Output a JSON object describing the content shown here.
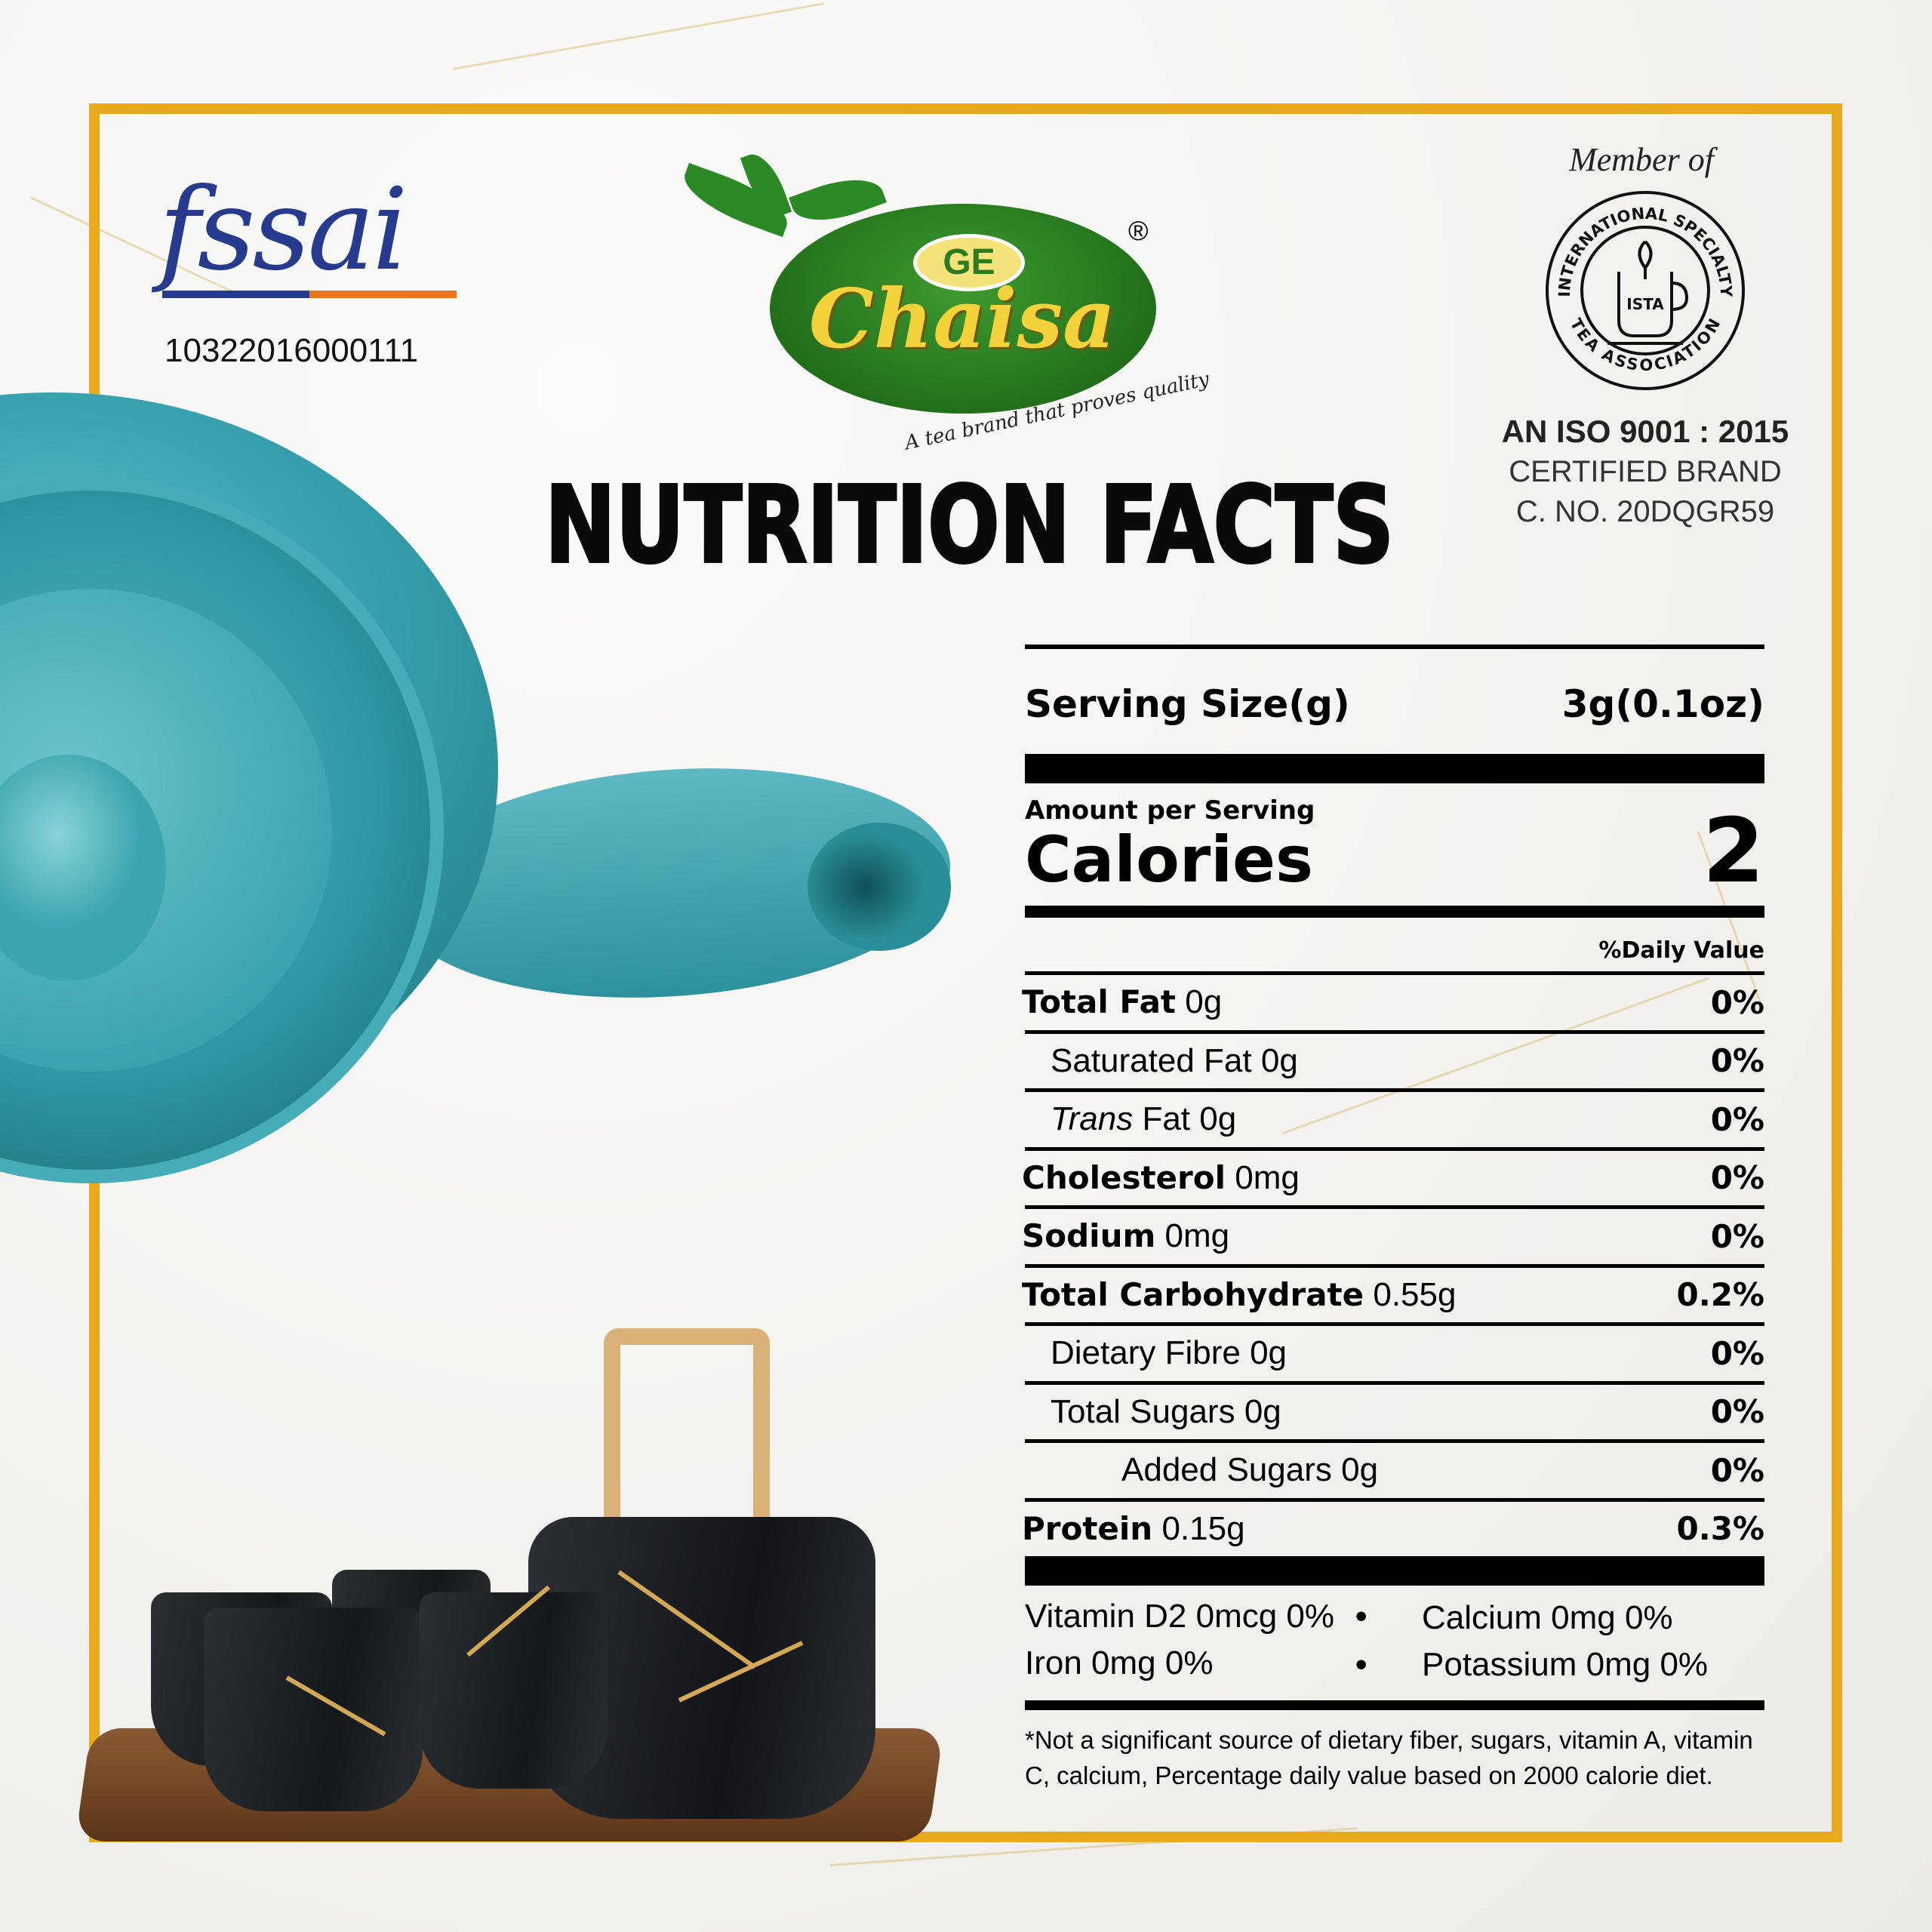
{
  "colors": {
    "frame": "#e8aa1c",
    "teapot": "#3aa5b1",
    "brand_green": "#23701b",
    "brand_yellow": "#f3d23b"
  },
  "fssai": {
    "logo_text": "fssai",
    "license_no": "10322016000111"
  },
  "brand": {
    "badge": "GE",
    "name": "Chaisa",
    "tagline": "A tea brand that proves quality",
    "registered": "®"
  },
  "membership": {
    "label": "Member of",
    "seal_outer_top": "INTERNATIONAL SPECIALTY",
    "seal_outer_bottom": "TEA ASSOCIATION",
    "seal_center": "ISTA"
  },
  "certification": {
    "iso": "AN ISO 9001 : 2015",
    "brand": "CERTIFIED BRAND",
    "number": "C. NO. 20DQGR59"
  },
  "title": "NUTRITION FACTS",
  "nutrition": {
    "serving_label": "Serving Size(g)",
    "serving_value": "3g(0.1oz)",
    "amount_label": "Amount per Serving",
    "calories_label": "Calories",
    "calories_value": "2",
    "daily_value_label": "%Daily Value",
    "rows": [
      {
        "label": "Total Fat",
        "amount": "0g",
        "dv": "0%",
        "bold": true,
        "indent": 0
      },
      {
        "label": "Saturated Fat",
        "amount": "0g",
        "dv": "0%",
        "bold": false,
        "indent": 1
      },
      {
        "label": "Trans",
        "label_suffix": "Fat",
        "amount": "0g",
        "dv": "0%",
        "bold": false,
        "indent": 1,
        "italic": true
      },
      {
        "label": "Cholesterol",
        "amount": "0mg",
        "dv": "0%",
        "bold": true,
        "indent": 0
      },
      {
        "label": "Sodium",
        "amount": "0mg",
        "dv": "0%",
        "bold": true,
        "indent": 0
      },
      {
        "label": "Total Carbohydrate",
        "amount": "0.55g",
        "dv": "0.2%",
        "bold": true,
        "indent": 0
      },
      {
        "label": "Dietary Fibre",
        "amount": "0g",
        "dv": "0%",
        "bold": false,
        "indent": 1
      },
      {
        "label": "Total Sugars",
        "amount": "0g",
        "dv": "0%",
        "bold": false,
        "indent": 1
      },
      {
        "label": "Added Sugars",
        "amount": "0g",
        "dv": "0%",
        "bold": false,
        "indent": 2
      },
      {
        "label": "Protein",
        "amount": "0.15g",
        "dv": "0.3%",
        "bold": true,
        "indent": 0
      }
    ],
    "vitamins": [
      "Vitamin D2 0mcg 0%",
      "Calcium 0mg 0%",
      "Iron 0mg 0%",
      "Potassium 0mg 0%"
    ],
    "bullet": "•",
    "footnote": "*Not a significant source of dietary fiber, sugars, vitamin A, vitamin C, calcium, Percentage daily value based on 2000 calorie diet."
  }
}
